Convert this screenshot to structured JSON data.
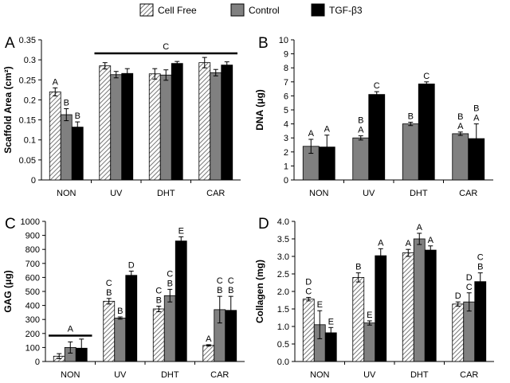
{
  "legend": [
    {
      "name": "Cell Free",
      "pattern": "hatch"
    },
    {
      "name": "Control",
      "color": "#808080"
    },
    {
      "name": "TGF-β3",
      "color": "#000000"
    }
  ],
  "chart_data": [
    {
      "panel": "A",
      "type": "bar",
      "ylabel": "Scaffold Area (cm²)",
      "ylim": [
        0,
        0.35
      ],
      "yticks": [
        "0",
        "0.05",
        "0.1",
        "0.15",
        "0.2",
        "0.25",
        "0.3",
        "0.35"
      ],
      "categories": [
        "NON",
        "UV",
        "DHT",
        "CAR"
      ],
      "series": [
        {
          "name": "Cell Free",
          "values": [
            0.22,
            0.285,
            0.265,
            0.293
          ],
          "errors": [
            0.01,
            0.008,
            0.013,
            0.013
          ],
          "labels": [
            [
              "A"
            ],
            [],
            [],
            []
          ]
        },
        {
          "name": "Control",
          "values": [
            0.163,
            0.263,
            0.262,
            0.268
          ],
          "errors": [
            0.015,
            0.008,
            0.013,
            0.008
          ],
          "labels": [
            [
              "B"
            ],
            [],
            [],
            []
          ]
        },
        {
          "name": "TGF-β3",
          "values": [
            0.132,
            0.266,
            0.291,
            0.287
          ],
          "errors": [
            0.013,
            0.012,
            0.005,
            0.008
          ],
          "labels": [
            [
              "B"
            ],
            [],
            [],
            []
          ]
        }
      ],
      "bracket": {
        "label": "C",
        "from": 1,
        "to": 3
      }
    },
    {
      "panel": "B",
      "type": "bar",
      "ylabel": "DNA (μg)",
      "ylim": [
        0,
        10
      ],
      "yticks": [
        "0",
        "1",
        "2",
        "3",
        "4",
        "5",
        "6",
        "7",
        "8",
        "9",
        "10"
      ],
      "categories": [
        "NON",
        "UV",
        "DHT",
        "CAR"
      ],
      "series": [
        {
          "name": "Control",
          "values": [
            2.4,
            3.0,
            4.0,
            3.3
          ],
          "errors": [
            0.5,
            0.15,
            0.12,
            0.12
          ],
          "labels": [
            [
              "A"
            ],
            [
              "B",
              "A"
            ],
            [
              "B"
            ],
            [
              "B",
              "A"
            ]
          ]
        },
        {
          "name": "TGF-β3",
          "values": [
            2.35,
            6.1,
            6.85,
            2.95
          ],
          "errors": [
            0.85,
            0.2,
            0.15,
            1.05
          ],
          "labels": [
            [
              "A"
            ],
            [
              "C"
            ],
            [
              "C"
            ],
            [
              "B",
              "A"
            ]
          ]
        }
      ]
    },
    {
      "panel": "C",
      "type": "bar",
      "ylabel": "GAG (μg)",
      "ylim": [
        0,
        1000
      ],
      "yticks": [
        "0",
        "100",
        "200",
        "300",
        "400",
        "500",
        "600",
        "700",
        "800",
        "900",
        "1000"
      ],
      "categories": [
        "NON",
        "UV",
        "DHT",
        "CAR"
      ],
      "series": [
        {
          "name": "Cell Free",
          "values": [
            38,
            430,
            375,
            115
          ],
          "errors": [
            18,
            20,
            20,
            5
          ],
          "labels": [
            [],
            [
              "C",
              "B"
            ],
            [
              "C",
              "B"
            ],
            [
              "A"
            ]
          ]
        },
        {
          "name": "Control",
          "values": [
            100,
            310,
            470,
            370
          ],
          "errors": [
            40,
            8,
            45,
            95
          ],
          "labels": [
            [],
            [
              "B"
            ],
            [
              "C",
              "B"
            ],
            [
              "C",
              "B"
            ]
          ]
        },
        {
          "name": "TGF-β3",
          "values": [
            95,
            615,
            860,
            365
          ],
          "errors": [
            65,
            30,
            30,
            100
          ],
          "labels": [
            [],
            [
              "D"
            ],
            [
              "E"
            ],
            [
              "C",
              "B"
            ]
          ]
        }
      ],
      "bracket": {
        "label": "A",
        "from": 0,
        "to": 0
      }
    },
    {
      "panel": "D",
      "type": "bar",
      "ylabel": "Collagen (mg)",
      "ylim": [
        0,
        4.0
      ],
      "yticks": [
        "0.0",
        "0.5",
        "1.0",
        "1.5",
        "2.0",
        "2.5",
        "3.0",
        "3.5",
        "4.0"
      ],
      "categories": [
        "NON",
        "UV",
        "DHT",
        "CAR"
      ],
      "series": [
        {
          "name": "Cell Free",
          "values": [
            1.78,
            2.4,
            3.1,
            1.64
          ],
          "errors": [
            0.05,
            0.13,
            0.1,
            0.06
          ],
          "labels": [
            [
              "D",
              "C"
            ],
            [
              "B"
            ],
            [
              "A"
            ],
            [
              "D"
            ]
          ]
        },
        {
          "name": "Control",
          "values": [
            1.05,
            1.1,
            3.5,
            1.7
          ],
          "errors": [
            0.4,
            0.06,
            0.16,
            0.26
          ],
          "labels": [
            [
              "E"
            ],
            [
              "E"
            ],
            [
              "A"
            ],
            [
              "D",
              "C"
            ]
          ]
        },
        {
          "name": "TGF-β3",
          "values": [
            0.82,
            3.02,
            3.18,
            2.28
          ],
          "errors": [
            0.15,
            0.2,
            0.12,
            0.25
          ],
          "labels": [
            [
              "E"
            ],
            [
              "A"
            ],
            [
              "A"
            ],
            [
              "C",
              "B"
            ]
          ]
        }
      ]
    }
  ]
}
